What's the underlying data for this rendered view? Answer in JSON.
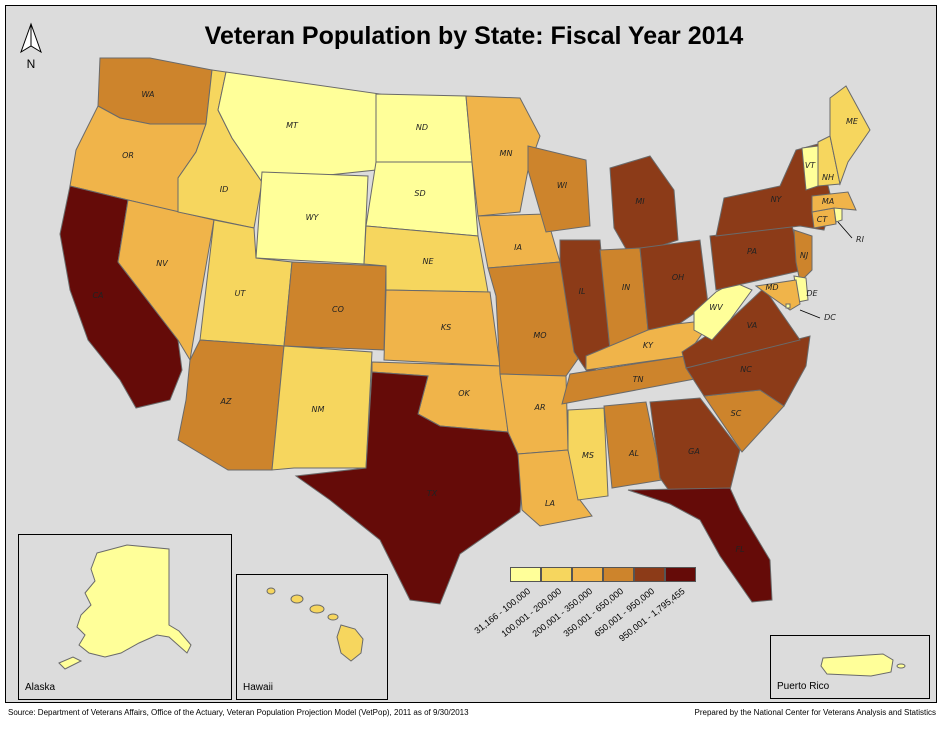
{
  "title": "Veteran Population by State: Fiscal Year 2014",
  "north_label": "N",
  "legend": {
    "classes": [
      {
        "label": "31,166 - 100,000",
        "color": "#ffff99"
      },
      {
        "label": "100,001 - 200,000",
        "color": "#f6d65e"
      },
      {
        "label": "200,001 - 350,000",
        "color": "#f0b44a"
      },
      {
        "label": "350,001 - 650,000",
        "color": "#cd842c"
      },
      {
        "label": "650,001 - 950,000",
        "color": "#8c3b18"
      },
      {
        "label": "950,001 - 1,795,455",
        "color": "#650b08"
      }
    ]
  },
  "states": [
    {
      "abbr": "WA",
      "class": 3
    },
    {
      "abbr": "OR",
      "class": 2
    },
    {
      "abbr": "CA",
      "class": 5
    },
    {
      "abbr": "NV",
      "class": 2
    },
    {
      "abbr": "ID",
      "class": 1
    },
    {
      "abbr": "MT",
      "class": 0
    },
    {
      "abbr": "WY",
      "class": 0
    },
    {
      "abbr": "UT",
      "class": 1
    },
    {
      "abbr": "AZ",
      "class": 3
    },
    {
      "abbr": "CO",
      "class": 3
    },
    {
      "abbr": "NM",
      "class": 1
    },
    {
      "abbr": "ND",
      "class": 0
    },
    {
      "abbr": "SD",
      "class": 0
    },
    {
      "abbr": "NE",
      "class": 1
    },
    {
      "abbr": "KS",
      "class": 2
    },
    {
      "abbr": "OK",
      "class": 2
    },
    {
      "abbr": "TX",
      "class": 5
    },
    {
      "abbr": "MN",
      "class": 2
    },
    {
      "abbr": "IA",
      "class": 2
    },
    {
      "abbr": "MO",
      "class": 3
    },
    {
      "abbr": "AR",
      "class": 2
    },
    {
      "abbr": "LA",
      "class": 2
    },
    {
      "abbr": "WI",
      "class": 3
    },
    {
      "abbr": "IL",
      "class": 4
    },
    {
      "abbr": "MI",
      "class": 4
    },
    {
      "abbr": "IN",
      "class": 3
    },
    {
      "abbr": "OH",
      "class": 4
    },
    {
      "abbr": "KY",
      "class": 2
    },
    {
      "abbr": "TN",
      "class": 3
    },
    {
      "abbr": "MS",
      "class": 1
    },
    {
      "abbr": "AL",
      "class": 3
    },
    {
      "abbr": "GA",
      "class": 4
    },
    {
      "abbr": "FL",
      "class": 5
    },
    {
      "abbr": "SC",
      "class": 3
    },
    {
      "abbr": "NC",
      "class": 4
    },
    {
      "abbr": "VA",
      "class": 4
    },
    {
      "abbr": "WV",
      "class": 0
    },
    {
      "abbr": "PA",
      "class": 4
    },
    {
      "abbr": "NY",
      "class": 4
    },
    {
      "abbr": "NJ",
      "class": 3
    },
    {
      "abbr": "DE",
      "class": 0
    },
    {
      "abbr": "MD",
      "class": 2
    },
    {
      "abbr": "DC",
      "class": 0
    },
    {
      "abbr": "CT",
      "class": 2
    },
    {
      "abbr": "RI",
      "class": 0
    },
    {
      "abbr": "MA",
      "class": 2
    },
    {
      "abbr": "VT",
      "class": 0
    },
    {
      "abbr": "NH",
      "class": 1
    },
    {
      "abbr": "ME",
      "class": 1
    },
    {
      "abbr": "AK",
      "class": 0
    },
    {
      "abbr": "HI",
      "class": 1
    },
    {
      "abbr": "PR",
      "class": 0
    }
  ],
  "insets": {
    "alaska": "Alaska",
    "hawaii": "Hawaii",
    "puerto_rico": "Puerto Rico"
  },
  "footer": {
    "source": "Source: Department of Veterans Affairs, Office of the Actuary, Veteran Population Projection Model (VetPop), 2011 as of 9/30/2013",
    "prepared": "Prepared by the National Center for Veterans Analysis and Statistics"
  }
}
